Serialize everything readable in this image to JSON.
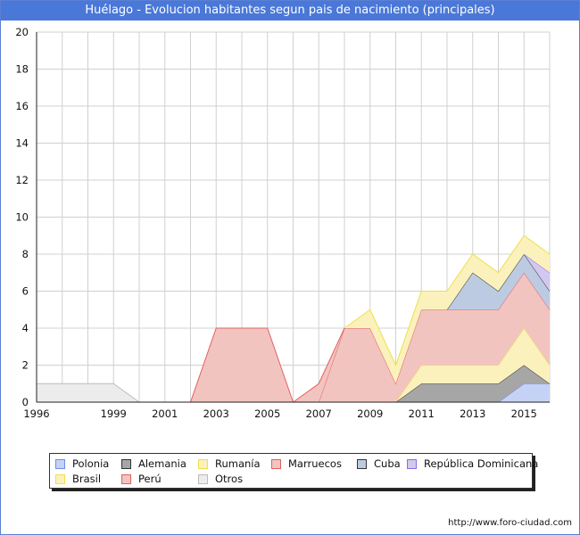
{
  "title": "Huélago - Evolucion habitantes segun pais de nacimiento (principales)",
  "source": "http://www.foro-ciudad.com",
  "chart_data": {
    "type": "area",
    "stacked": true,
    "x": [
      1996,
      1997,
      1998,
      1999,
      2000,
      2001,
      2002,
      2003,
      2004,
      2005,
      2006,
      2007,
      2008,
      2009,
      2010,
      2011,
      2012,
      2013,
      2014,
      2015,
      2016
    ],
    "x_ticks": [
      1996,
      1999,
      2001,
      2003,
      2005,
      2007,
      2009,
      2011,
      2013,
      2015
    ],
    "y_ticks": [
      0,
      2,
      4,
      6,
      8,
      10,
      12,
      14,
      16,
      18,
      20
    ],
    "ylim": [
      0,
      20
    ],
    "grid": true,
    "series": [
      {
        "name": "Polonia",
        "fill": "#c6d2f5",
        "stroke": "#6f8ee0",
        "values": [
          0,
          0,
          0,
          0,
          0,
          0,
          0,
          0,
          0,
          0,
          0,
          0,
          0,
          0,
          0,
          0,
          0,
          0,
          0,
          1,
          1
        ]
      },
      {
        "name": "Alemania",
        "fill": "#a6a6a6",
        "stroke": "#333333",
        "values": [
          0,
          0,
          0,
          0,
          0,
          0,
          0,
          0,
          0,
          0,
          0,
          0,
          0,
          0,
          0,
          1,
          1,
          1,
          1,
          1,
          0
        ]
      },
      {
        "name": "Rumanía",
        "fill": "#fbf1bc",
        "stroke": "#eee04a",
        "values": [
          0,
          0,
          0,
          0,
          0,
          0,
          0,
          0,
          0,
          0,
          0,
          0,
          0,
          0,
          0,
          1,
          1,
          1,
          1,
          2,
          1
        ]
      },
      {
        "name": "Marruecos",
        "fill": "#f2c4c0",
        "stroke": "#e26060",
        "values": [
          0,
          0,
          0,
          0,
          0,
          0,
          0,
          4,
          4,
          4,
          0,
          0,
          4,
          4,
          1,
          3,
          3,
          3,
          3,
          3,
          3
        ]
      },
      {
        "name": "Cuba",
        "fill": "#bdcbe2",
        "stroke": "#333333",
        "values": [
          0,
          0,
          0,
          0,
          0,
          0,
          0,
          0,
          0,
          0,
          0,
          0,
          0,
          0,
          0,
          0,
          0,
          2,
          1,
          1,
          1
        ]
      },
      {
        "name": "República Dominicana",
        "fill": "#d2c8f0",
        "stroke": "#8a6fe0",
        "values": [
          0,
          0,
          0,
          0,
          0,
          0,
          0,
          0,
          0,
          0,
          0,
          0,
          0,
          0,
          0,
          0,
          0,
          0,
          0,
          0,
          1
        ]
      },
      {
        "name": "Brasil",
        "fill": "#fbf1bc",
        "stroke": "#eee04a",
        "values": [
          0,
          0,
          0,
          0,
          0,
          0,
          0,
          0,
          0,
          0,
          0,
          0,
          0,
          1,
          1,
          1,
          1,
          1,
          1,
          1,
          1
        ]
      },
      {
        "name": "Perú",
        "fill": "#f2c4c0",
        "stroke": "#e26060",
        "values": [
          0,
          0,
          0,
          0,
          0,
          0,
          0,
          0,
          0,
          0,
          0,
          1,
          0,
          0,
          0,
          0,
          0,
          0,
          0,
          0,
          0
        ]
      },
      {
        "name": "Otros",
        "fill": "#ececec",
        "stroke": "#bbbbbb",
        "values": [
          1,
          1,
          1,
          1,
          0,
          0,
          0,
          0,
          0,
          0,
          0,
          0,
          0,
          0,
          0,
          0,
          0,
          0,
          0,
          0,
          0
        ]
      }
    ]
  }
}
